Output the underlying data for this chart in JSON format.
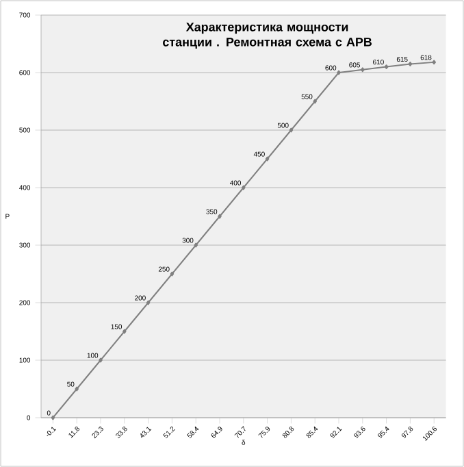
{
  "chart_data": {
    "type": "line",
    "title": "Характеристика мощности станции . Ремонтная схема с АРВ",
    "xlabel": "δ",
    "ylabel": "P",
    "categories": [
      "-0.1",
      "11.8",
      "23.3",
      "33.8",
      "43.1",
      "51.2",
      "58.4",
      "64.9",
      "70.7",
      "75.9",
      "80.8",
      "85.4",
      "92.1",
      "93.6",
      "95.4",
      "97.8",
      "100.6"
    ],
    "values": [
      0,
      50,
      100,
      150,
      200,
      250,
      300,
      350,
      400,
      450,
      500,
      550,
      600,
      605,
      610,
      615,
      618
    ],
    "color": "#808080",
    "ylim": [
      0,
      700
    ],
    "yticks": [
      0,
      100,
      200,
      300,
      400,
      500,
      600,
      700
    ],
    "grid": "y",
    "marker": "diamond",
    "line_style": "solid",
    "data_labels": true
  }
}
